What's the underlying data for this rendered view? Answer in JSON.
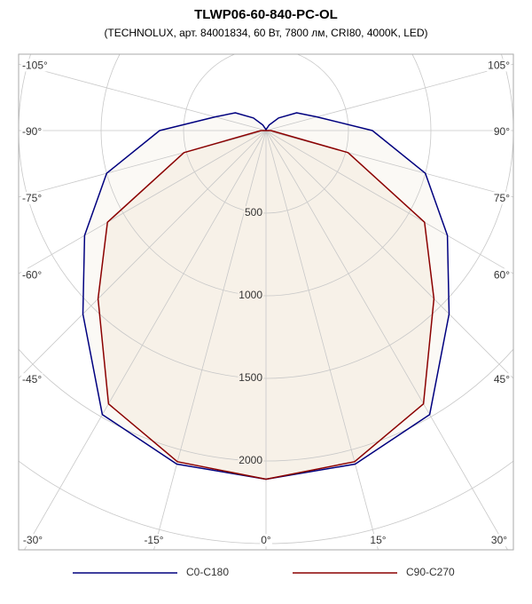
{
  "chart_data": {
    "type": "polar",
    "title": "TLWP06-60-840-PC-OL",
    "subtitle": "(TECHNOLUX, арт. 84001834, 60 Вт, 7800 лм, CRI80, 4000K, LED)",
    "angles": [
      -180,
      -165,
      -150,
      -135,
      -120,
      -105,
      -90,
      -75,
      -60,
      -45,
      -30,
      -15,
      0,
      15,
      30,
      45,
      60,
      75,
      90,
      105,
      120,
      135,
      150,
      165,
      180
    ],
    "series": [
      {
        "name": "C0-C180",
        "color": "#00007f",
        "values": [
          0,
          10,
          40,
          108,
          215,
          320,
          645,
          1000,
          1270,
          1570,
          1985,
          2090,
          2110,
          2090,
          1985,
          1570,
          1270,
          1000,
          645,
          320,
          215,
          108,
          40,
          10,
          0
        ]
      },
      {
        "name": "C90-C270",
        "color": "#8b0000",
        "values": [
          0,
          0,
          0,
          0,
          0,
          0,
          30,
          515,
          1110,
          1440,
          1910,
          2075,
          2110,
          2075,
          1910,
          1440,
          1110,
          515,
          30,
          0,
          0,
          0,
          0,
          0,
          0
        ]
      }
    ],
    "rlim": [
      0,
      3000
    ],
    "rticks": [
      500,
      1000,
      1500,
      2000
    ],
    "thetaticks": [
      {
        "value": -105,
        "label": "-105°"
      },
      {
        "value": -90,
        "label": "-90°"
      },
      {
        "value": -75,
        "label": "-75°"
      },
      {
        "value": -60,
        "label": "-60°"
      },
      {
        "value": -45,
        "label": "-45°"
      },
      {
        "value": -30,
        "label": "-30°"
      },
      {
        "value": -15,
        "label": "-15°"
      },
      {
        "value": 0,
        "label": "0°"
      },
      {
        "value": 15,
        "label": "15°"
      },
      {
        "value": 30,
        "label": "30°"
      },
      {
        "value": 45,
        "label": "45°"
      },
      {
        "value": 60,
        "label": "60°"
      },
      {
        "value": 75,
        "label": "75°"
      },
      {
        "value": 90,
        "label": "90°"
      },
      {
        "value": 105,
        "label": "105°"
      }
    ]
  }
}
